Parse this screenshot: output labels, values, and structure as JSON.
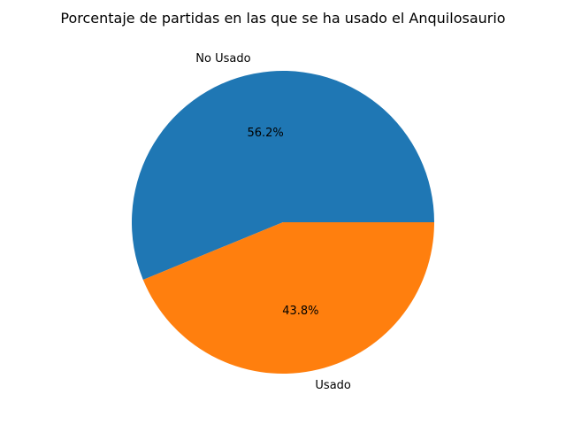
{
  "chart_data": {
    "type": "pie",
    "title": "Porcentaje de partidas en las que se ha usado el Anquilosaurio",
    "slices": [
      {
        "label": "No Usado",
        "value": 56.2,
        "pct_label": "56.2%",
        "color": "#1f77b4"
      },
      {
        "label": "Usado",
        "value": 43.8,
        "pct_label": "43.8%",
        "color": "#ff7f0e"
      }
    ],
    "start_angle_deg": 0,
    "direction": "counterclockwise",
    "legend": "none"
  }
}
